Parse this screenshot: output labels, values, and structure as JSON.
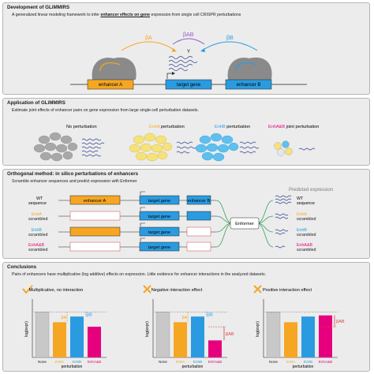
{
  "panels": {
    "p1": {
      "title": "Development of GLiMMIRS",
      "subtitle_parts": [
        "A generalized linear modeling framework to infer ",
        "enhancer effects on gene",
        " expression from single cell CRISPR perturbations"
      ],
      "labels": {
        "beta_a": "βA",
        "beta_ab": "βAB",
        "beta_b": "βB",
        "y": "Y",
        "enhancer_a": "enhancer A",
        "target_gene": "target gene",
        "enhancer_b": "enhancer B"
      }
    },
    "p2": {
      "title": "Application of GLiMMIRS",
      "subtitle": "Estimate joint effects of enhancer pairs on gene expression from large single-cell perturbation datasets.",
      "groups": [
        {
          "label_parts": [
            "",
            "No perturbation"
          ]
        },
        {
          "label_parts": [
            "EnhA",
            " perturbation"
          ]
        },
        {
          "label_parts": [
            "EnhB",
            " perturbation"
          ]
        },
        {
          "label_parts": [
            "EnhA&B",
            " joint perturbation"
          ]
        }
      ]
    },
    "p3": {
      "title": "Orthogonal method: in silico perturbations of enhancers",
      "subtitle": "Scramble enhancer sequences and predict expression with Enformer",
      "rows": [
        {
          "l1": "WT",
          "l2": "sequence"
        },
        {
          "l1": "EnhA",
          "l2": "scrambled"
        },
        {
          "l1": "EnhB",
          "l2": "scrambled"
        },
        {
          "l1": "EnhA&B",
          "l2": "scrambled"
        }
      ],
      "enhancer_a": "enhancer A",
      "target_gene": "target gene",
      "enhancer_b": "enhancer B",
      "enformer": "Enformer",
      "predicted_title": "Predicted expression",
      "predicted": [
        {
          "l1": "WT",
          "l2": "sequence"
        },
        {
          "l1": "EnhA",
          "l2": "scrambled"
        },
        {
          "l1": "EnhB",
          "l2": "scrambled"
        },
        {
          "l1": "EnhA&B",
          "l2": "scrambled"
        }
      ]
    },
    "p4": {
      "title": "Conclusions",
      "subtitle": "Pairs of enhancers have multiplicative (log additive) effects on expression. Little evidence for enhancer interactions in the analyzed datasets.",
      "ylabel": "log(expr)",
      "xlabel": "perturbation",
      "categories": [
        "None",
        "EnhA",
        "EnhB",
        "EnhA&B"
      ],
      "annot": {
        "ba": "βA",
        "bb": "βB",
        "bab": "βAB"
      }
    }
  },
  "colors": {
    "orange": "#f5a623",
    "blue": "#2a9be0",
    "magenta": "#e6007e",
    "gray": "#c8c8c8",
    "purple": "#8e5ac8",
    "navy": "#2b3f8f",
    "green": "#3aa05a",
    "red": "#d94040"
  },
  "chart_data": [
    {
      "type": "bar",
      "title": "Multiplicative, no interaction",
      "categories": [
        "None",
        "EnhA",
        "EnhB",
        "EnhA&B"
      ],
      "values": [
        0.8,
        0.62,
        0.72,
        0.54
      ],
      "ylabel": "log(expr)",
      "xlabel": "perturbation",
      "annotations": [
        "βA",
        "βB"
      ]
    },
    {
      "type": "bar",
      "title": "Negative interaction effect",
      "categories": [
        "None",
        "EnhA",
        "EnhB",
        "EnhA&B"
      ],
      "values": [
        0.8,
        0.62,
        0.72,
        0.3
      ],
      "ylabel": "log(expr)",
      "xlabel": "perturbation",
      "annotations": [
        "βA",
        "βB",
        "βAB"
      ]
    },
    {
      "type": "bar",
      "title": "Positive interaction effect",
      "categories": [
        "None",
        "EnhA",
        "EnhB",
        "EnhA&B"
      ],
      "values": [
        0.8,
        0.62,
        0.72,
        0.74
      ],
      "ylabel": "log(expr)",
      "xlabel": "perturbation",
      "annotations": [
        "βAB"
      ]
    }
  ]
}
